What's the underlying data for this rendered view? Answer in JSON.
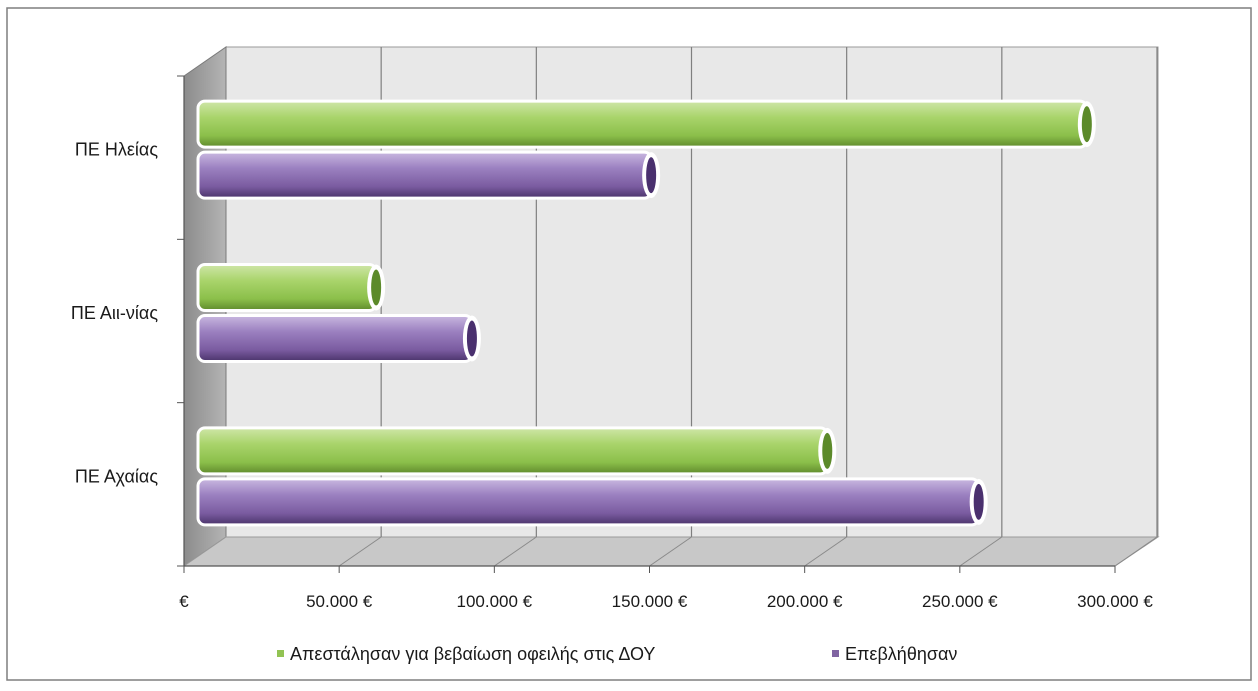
{
  "chart_data": {
    "type": "bar",
    "orientation": "horizontal",
    "style": "3d-cylinder",
    "categories": [
      "ΠΕ Ηλείας",
      "ΠΕ Αιι-νίας",
      "ΠΕ Αχαίας"
    ],
    "series": [
      {
        "name": "Απεστάλησαν για βεβαίωση οφειλής στις ΔΟΥ",
        "values": [
          287000,
          57000,
          203000
        ],
        "color": "#92c353"
      },
      {
        "name": "Επεβλήθησαν",
        "values": [
          146000,
          88000,
          252000
        ],
        "color": "#8064a2"
      }
    ],
    "xlim": [
      0,
      300000
    ],
    "x_ticks": [
      {
        "value": 0,
        "label": "€"
      },
      {
        "value": 50000,
        "label": "50.000 €"
      },
      {
        "value": 100000,
        "label": "100.000 €"
      },
      {
        "value": 150000,
        "label": "150.000 €"
      },
      {
        "value": 200000,
        "label": "200.000 €"
      },
      {
        "value": 250000,
        "label": "250.000 €"
      },
      {
        "value": 300000,
        "label": "300.000 €"
      }
    ],
    "grid": true,
    "legend_position": "bottom"
  }
}
